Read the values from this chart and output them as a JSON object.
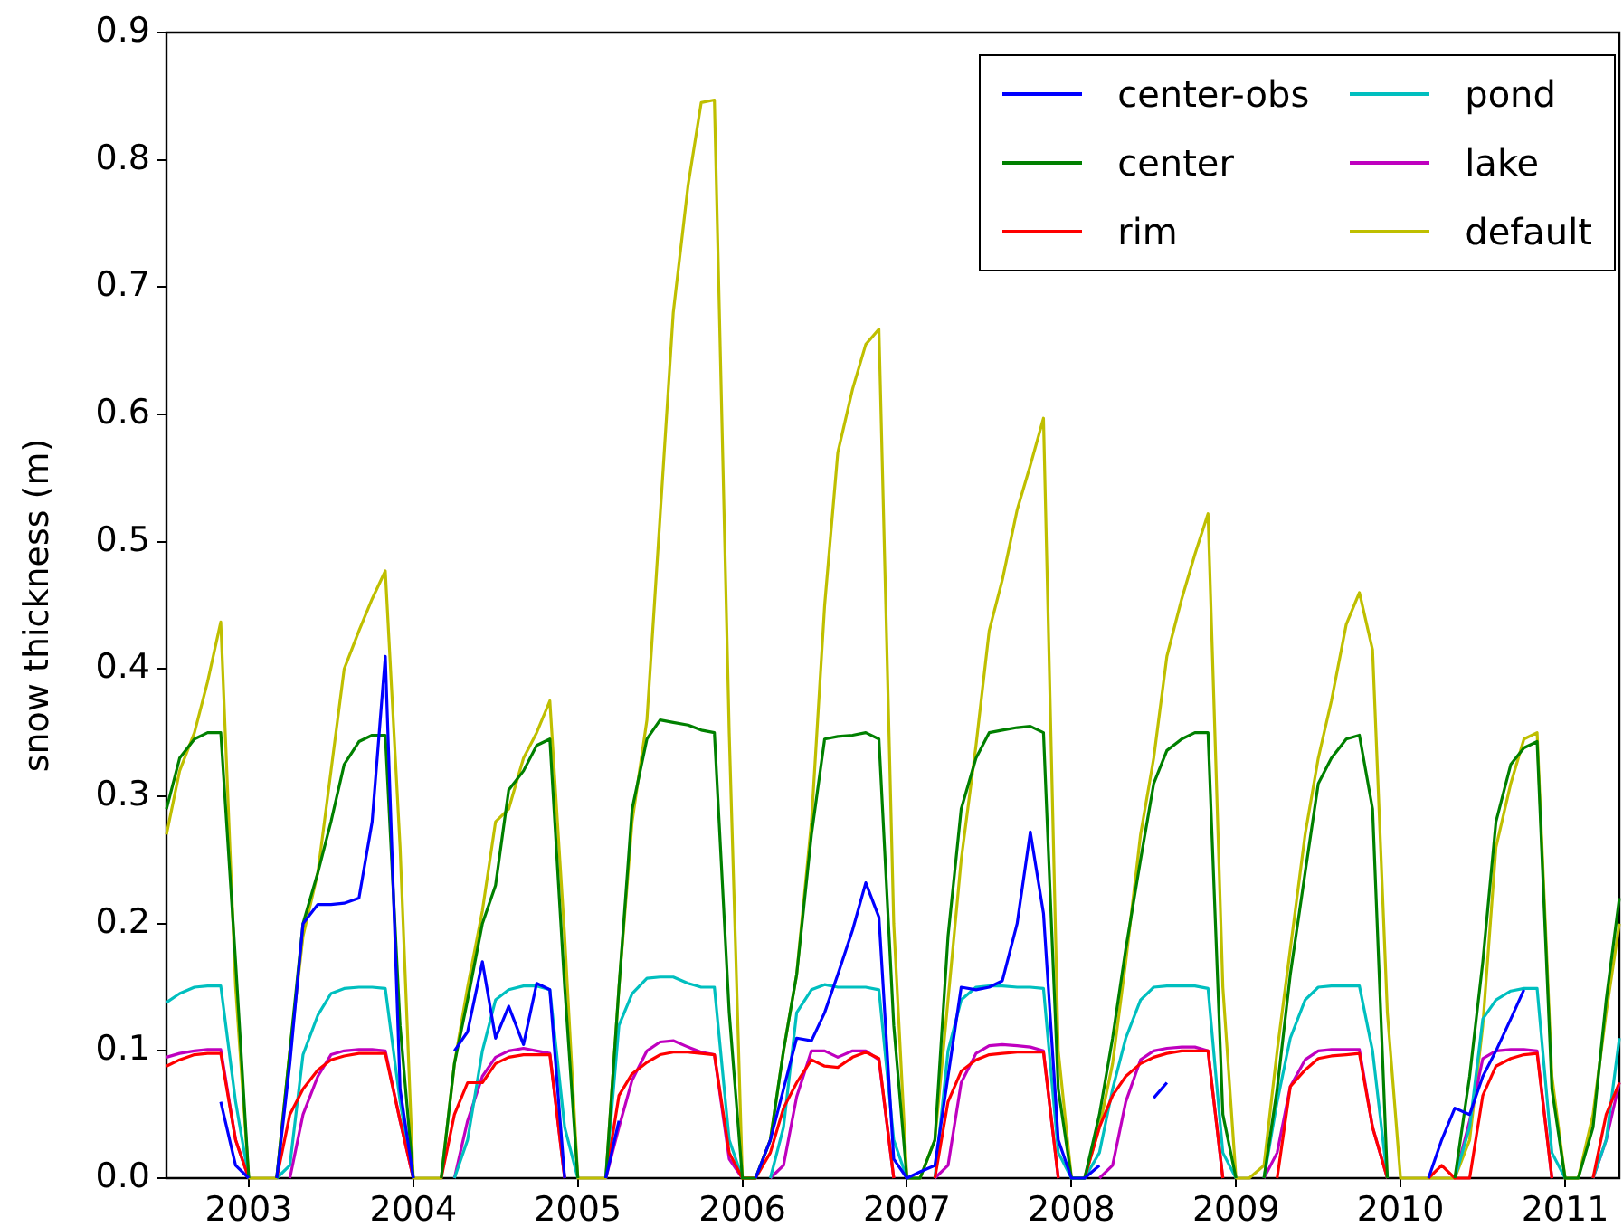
{
  "chart_data": {
    "type": "line",
    "ylabel": "snow thickness (m)",
    "x": [
      2002.5,
      2002.58,
      2002.67,
      2002.75,
      2002.83,
      2002.92,
      2003,
      2003.08,
      2003.17,
      2003.25,
      2003.33,
      2003.42,
      2003.5,
      2003.58,
      2003.67,
      2003.75,
      2003.83,
      2003.92,
      2004,
      2004.08,
      2004.17,
      2004.25,
      2004.33,
      2004.42,
      2004.5,
      2004.58,
      2004.67,
      2004.75,
      2004.83,
      2004.92,
      2005,
      2005.08,
      2005.17,
      2005.25,
      2005.33,
      2005.42,
      2005.5,
      2005.58,
      2005.67,
      2005.75,
      2005.83,
      2005.92,
      2006,
      2006.08,
      2006.17,
      2006.25,
      2006.33,
      2006.42,
      2006.5,
      2006.58,
      2006.67,
      2006.75,
      2006.83,
      2006.92,
      2007,
      2007.08,
      2007.17,
      2007.25,
      2007.33,
      2007.42,
      2007.5,
      2007.58,
      2007.67,
      2007.75,
      2007.83,
      2007.92,
      2008,
      2008.08,
      2008.17,
      2008.25,
      2008.33,
      2008.42,
      2008.5,
      2008.58,
      2008.67,
      2008.75,
      2008.83,
      2008.92,
      2009,
      2009.08,
      2009.17,
      2009.25,
      2009.33,
      2009.42,
      2009.5,
      2009.58,
      2009.67,
      2009.75,
      2009.83,
      2009.92,
      2010,
      2010.08,
      2010.17,
      2010.25,
      2010.33,
      2010.42,
      2010.5,
      2010.58,
      2010.67,
      2010.75,
      2010.83,
      2010.92,
      2011,
      2011.08,
      2011.17,
      2011.25,
      2011.33
    ],
    "series": [
      {
        "name": "center-obs",
        "color": "#0000ff",
        "values": [
          null,
          null,
          null,
          null,
          0.06,
          0.01,
          0,
          null,
          0,
          0.09,
          0.2,
          0.215,
          0.215,
          0.216,
          0.22,
          0.28,
          0.41,
          0.07,
          0,
          null,
          null,
          0.1,
          0.115,
          0.17,
          0.11,
          0.135,
          0.105,
          0.153,
          0.148,
          0,
          null,
          null,
          0,
          0.045,
          null,
          null,
          null,
          null,
          null,
          null,
          null,
          null,
          null,
          0,
          0.03,
          0.07,
          0.11,
          0.108,
          0.13,
          0.16,
          0.195,
          0.232,
          0.205,
          0.015,
          0,
          0.005,
          0.01,
          0.08,
          0.15,
          0.148,
          0.15,
          0.155,
          0.2,
          0.272,
          0.208,
          0.03,
          0,
          0,
          0.01,
          null,
          null,
          null,
          0.063,
          0.075,
          null,
          null,
          null,
          null,
          null,
          null,
          null,
          null,
          null,
          null,
          null,
          null,
          null,
          null,
          null,
          null,
          null,
          null,
          0,
          0.03,
          0.055,
          0.05,
          0.08,
          0.1,
          0.125,
          0.148,
          null,
          null,
          null,
          null,
          null,
          null,
          null
        ]
      },
      {
        "name": "center",
        "color": "#008000",
        "values": [
          0.29,
          0.33,
          0.345,
          0.35,
          0.35,
          0.17,
          0,
          null,
          0,
          0.1,
          0.2,
          0.24,
          0.28,
          0.325,
          0.343,
          0.348,
          0.348,
          0.12,
          0,
          null,
          0,
          0.09,
          0.14,
          0.2,
          0.23,
          0.305,
          0.32,
          0.34,
          0.345,
          0.15,
          0,
          null,
          0,
          0.15,
          0.29,
          0.345,
          0.36,
          0.358,
          0.356,
          0.352,
          0.35,
          0.13,
          0,
          0,
          0.03,
          0.1,
          0.16,
          0.27,
          0.345,
          0.347,
          0.348,
          0.35,
          0.345,
          0.12,
          0,
          0,
          0.03,
          0.19,
          0.29,
          0.33,
          0.35,
          0.352,
          0.354,
          0.355,
          0.35,
          0.07,
          0,
          0,
          0.05,
          0.11,
          0.18,
          0.25,
          0.31,
          0.336,
          0.345,
          0.35,
          0.35,
          0.05,
          0,
          null,
          0,
          0.07,
          0.16,
          0.24,
          0.31,
          0.33,
          0.345,
          0.348,
          0.29,
          0,
          null,
          null,
          null,
          null,
          0,
          0.08,
          0.17,
          0.28,
          0.325,
          0.338,
          0.343,
          0.07,
          0,
          0,
          0.04,
          0.14,
          0.22
        ]
      },
      {
        "name": "rim",
        "color": "#ff0000",
        "values": [
          0.088,
          0.093,
          0.097,
          0.098,
          0.098,
          0.03,
          0,
          null,
          0,
          0.05,
          0.07,
          0.085,
          0.093,
          0.096,
          0.098,
          0.098,
          0.098,
          0.045,
          0,
          null,
          0,
          0.05,
          0.075,
          0.075,
          0.09,
          0.095,
          0.097,
          0.097,
          0.097,
          0,
          null,
          null,
          0,
          0.065,
          0.082,
          0.091,
          0.097,
          0.099,
          0.099,
          0.098,
          0.097,
          0.02,
          0,
          0,
          0.02,
          0.055,
          0.075,
          0.093,
          0.088,
          0.087,
          0.095,
          0.099,
          0.094,
          0,
          null,
          null,
          0,
          0.06,
          0.084,
          0.093,
          0.097,
          0.098,
          0.099,
          0.099,
          0.099,
          0,
          null,
          0,
          0.04,
          0.065,
          0.08,
          0.09,
          0.095,
          0.098,
          0.1,
          0.1,
          0.1,
          0,
          null,
          null,
          null,
          0,
          0.072,
          0.085,
          0.094,
          0.096,
          0.097,
          0.098,
          0.04,
          0,
          null,
          null,
          0,
          0.01,
          0,
          0,
          0.065,
          0.088,
          0.094,
          0.097,
          0.098,
          0,
          null,
          null,
          0,
          0.05,
          0.075
        ]
      },
      {
        "name": "pond",
        "color": "#00bfbf",
        "values": [
          0.138,
          0.145,
          0.15,
          0.151,
          0.151,
          0.06,
          0,
          null,
          0,
          0.01,
          0.097,
          0.128,
          0.145,
          0.149,
          0.15,
          0.15,
          0.149,
          0.06,
          0,
          null,
          null,
          0,
          0.03,
          0.1,
          0.14,
          0.148,
          0.151,
          0.151,
          0.148,
          0.04,
          0,
          null,
          0,
          0.12,
          0.145,
          0.157,
          0.158,
          0.158,
          0.153,
          0.15,
          0.15,
          0.03,
          0,
          null,
          0,
          0.04,
          0.13,
          0.148,
          0.152,
          0.15,
          0.15,
          0.15,
          0.148,
          0.03,
          0,
          null,
          0,
          0.1,
          0.14,
          0.15,
          0.151,
          0.151,
          0.15,
          0.15,
          0.149,
          0.02,
          0,
          0,
          0.02,
          0.07,
          0.11,
          0.14,
          0.15,
          0.151,
          0.151,
          0.151,
          0.149,
          0.02,
          0,
          null,
          0,
          0.06,
          0.11,
          0.14,
          0.15,
          0.151,
          0.151,
          0.151,
          0.1,
          0,
          null,
          null,
          null,
          null,
          0,
          0.04,
          0.125,
          0.14,
          0.147,
          0.149,
          0.149,
          0.02,
          0,
          null,
          0,
          0.03,
          0.11
        ]
      },
      {
        "name": "lake",
        "color": "#bf00bf",
        "values": [
          0.095,
          0.098,
          0.1,
          0.101,
          0.101,
          0.03,
          0,
          null,
          null,
          0,
          0.05,
          0.08,
          0.097,
          0.1,
          0.101,
          0.101,
          0.1,
          0.045,
          0,
          null,
          null,
          0,
          0.045,
          0.08,
          0.095,
          0.1,
          0.102,
          0.1,
          0.098,
          0,
          null,
          null,
          0,
          0.04,
          0.077,
          0.1,
          0.107,
          0.108,
          0.103,
          0.099,
          0.097,
          0.015,
          0,
          null,
          0,
          0.01,
          0.064,
          0.1,
          0.1,
          0.095,
          0.1,
          0.1,
          0.093,
          0,
          null,
          null,
          0,
          0.01,
          0.075,
          0.098,
          0.104,
          0.105,
          0.104,
          0.103,
          0.1,
          0,
          null,
          null,
          0,
          0.01,
          0.06,
          0.093,
          0.1,
          0.102,
          0.103,
          0.103,
          0.1,
          0,
          null,
          null,
          0,
          0.02,
          0.072,
          0.093,
          0.1,
          0.101,
          0.101,
          0.101,
          0.04,
          0,
          null,
          null,
          null,
          null,
          0,
          0.045,
          0.094,
          0.1,
          0.101,
          0.101,
          0.1,
          0,
          null,
          null,
          0,
          0.03,
          0.075
        ]
      },
      {
        "name": "default",
        "color": "#bfbf00",
        "values": [
          0.27,
          0.32,
          0.35,
          0.39,
          0.437,
          0.15,
          0,
          0,
          0,
          0.1,
          0.19,
          0.24,
          0.32,
          0.4,
          0.43,
          0.455,
          0.477,
          0.26,
          0,
          0,
          0,
          0.09,
          0.15,
          0.21,
          0.28,
          0.29,
          0.33,
          0.35,
          0.375,
          0.19,
          0,
          0,
          0,
          0.15,
          0.28,
          0.36,
          0.52,
          0.68,
          0.78,
          0.845,
          0.847,
          0.35,
          0,
          0,
          0.03,
          0.1,
          0.16,
          0.28,
          0.45,
          0.57,
          0.62,
          0.655,
          0.667,
          0.2,
          0,
          0,
          0.03,
          0.14,
          0.25,
          0.34,
          0.43,
          0.47,
          0.525,
          0.56,
          0.597,
          0.1,
          0,
          0,
          0.04,
          0.09,
          0.17,
          0.27,
          0.33,
          0.41,
          0.455,
          0.49,
          0.522,
          0.15,
          0,
          0,
          0.01,
          0.1,
          0.18,
          0.27,
          0.33,
          0.375,
          0.435,
          0.46,
          0.415,
          0.13,
          0,
          0,
          0,
          0,
          0,
          0.03,
          0.12,
          0.26,
          0.31,
          0.345,
          0.35,
          0.08,
          0,
          0,
          0.05,
          0.13,
          0.2
        ]
      }
    ],
    "xlim": [
      2002.5,
      2011.33
    ],
    "xticks": [
      2003,
      2004,
      2005,
      2006,
      2007,
      2008,
      2009,
      2010,
      2011
    ],
    "ylim": [
      0,
      0.9
    ],
    "yticks": [
      {
        "value": 0,
        "label": "0.0"
      },
      {
        "value": 0.1,
        "label": "0.1"
      },
      {
        "value": 0.2,
        "label": "0.2"
      },
      {
        "value": 0.3,
        "label": "0.3"
      },
      {
        "value": 0.4,
        "label": "0.4"
      },
      {
        "value": 0.5,
        "label": "0.5"
      },
      {
        "value": 0.6,
        "label": "0.6"
      },
      {
        "value": 0.7,
        "label": "0.7"
      },
      {
        "value": 0.8,
        "label": "0.8"
      },
      {
        "value": 0.9,
        "label": "0.9"
      }
    ],
    "grid": false,
    "legend": "top right",
    "marker": "none",
    "line_style": "solid"
  }
}
